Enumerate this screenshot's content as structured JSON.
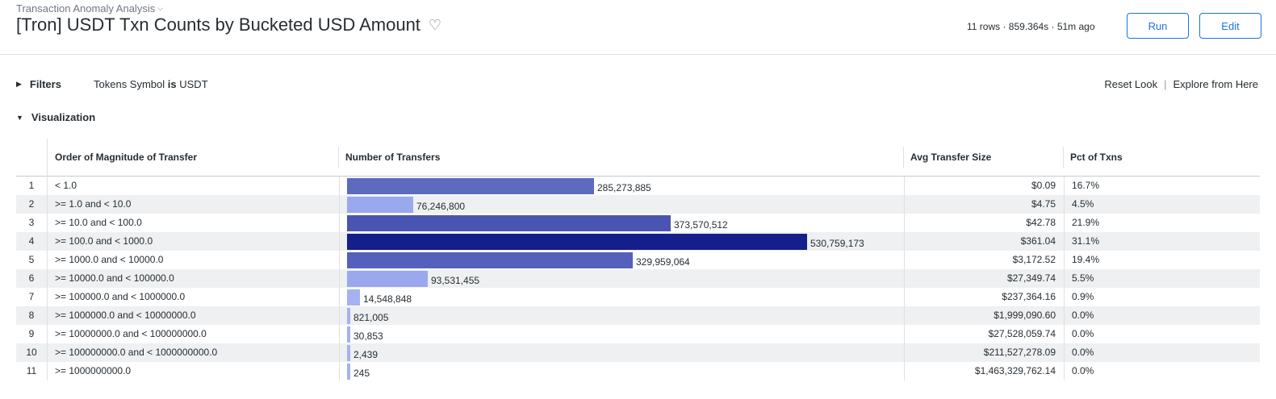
{
  "header": {
    "breadcrumb": "Transaction Anomaly Analysis",
    "title": "[Tron] USDT Txn Counts by Bucketed USD Amount",
    "meta": "11 rows · 859.364s · 51m ago",
    "run_label": "Run",
    "edit_label": "Edit"
  },
  "filters": {
    "label": "Filters",
    "field": "Tokens Symbol",
    "operator": "is",
    "value": "USDT",
    "reset_label": "Reset Look",
    "separator": "|",
    "explore_label": "Explore from Here"
  },
  "visualization": {
    "label": "Visualization"
  },
  "table": {
    "columns": [
      "Order of Magnitude of Transfer",
      "Number of Transfers",
      "Avg Transfer Size",
      "Pct of Txns"
    ],
    "bar_max": 530759173,
    "rows": [
      {
        "num": "1",
        "bucket": "< 1.0",
        "count": 285273885,
        "count_label": "285,273,885",
        "avg": "$0.09",
        "pct": "16.7%",
        "color": "#5c6bc0"
      },
      {
        "num": "2",
        "bucket": ">= 1.0 and < 10.0",
        "count": 76246800,
        "count_label": "76,246,800",
        "avg": "$4.75",
        "pct": "4.5%",
        "color": "#9aa8ee"
      },
      {
        "num": "3",
        "bucket": ">= 10.0 and < 100.0",
        "count": 373570512,
        "count_label": "373,570,512",
        "avg": "$42.78",
        "pct": "21.9%",
        "color": "#4a55b3"
      },
      {
        "num": "4",
        "bucket": ">= 100.0 and < 1000.0",
        "count": 530759173,
        "count_label": "530,759,173",
        "avg": "$361.04",
        "pct": "31.1%",
        "color": "#141e8c"
      },
      {
        "num": "5",
        "bucket": ">= 1000.0 and < 10000.0",
        "count": 329959064,
        "count_label": "329,959,064",
        "avg": "$3,172.52",
        "pct": "19.4%",
        "color": "#5460bb"
      },
      {
        "num": "6",
        "bucket": ">= 10000.0 and < 100000.0",
        "count": 93531455,
        "count_label": "93,531,455",
        "avg": "$27,349.74",
        "pct": "5.5%",
        "color": "#9aa8ee"
      },
      {
        "num": "7",
        "bucket": ">= 100000.0 and < 1000000.0",
        "count": 14548848,
        "count_label": "14,548,848",
        "avg": "$237,364.16",
        "pct": "0.9%",
        "color": "#a5b2f2"
      },
      {
        "num": "8",
        "bucket": ">= 1000000.0 and < 10000000.0",
        "count": 821005,
        "count_label": "821,005",
        "avg": "$1,999,090.60",
        "pct": "0.0%",
        "color": "#a5b2f2"
      },
      {
        "num": "9",
        "bucket": ">= 10000000.0 and < 100000000.0",
        "count": 30853,
        "count_label": "30,853",
        "avg": "$27,528,059.74",
        "pct": "0.0%",
        "color": "#a5b2f2"
      },
      {
        "num": "10",
        "bucket": ">= 100000000.0 and < 1000000000.0",
        "count": 2439,
        "count_label": "2,439",
        "avg": "$211,527,278.09",
        "pct": "0.0%",
        "color": "#a5b2f2"
      },
      {
        "num": "11",
        "bucket": ">= 1000000000.0",
        "count": 245,
        "count_label": "245",
        "avg": "$1,463,329,762.14",
        "pct": "0.0%",
        "color": "#a5b2f2"
      }
    ]
  }
}
